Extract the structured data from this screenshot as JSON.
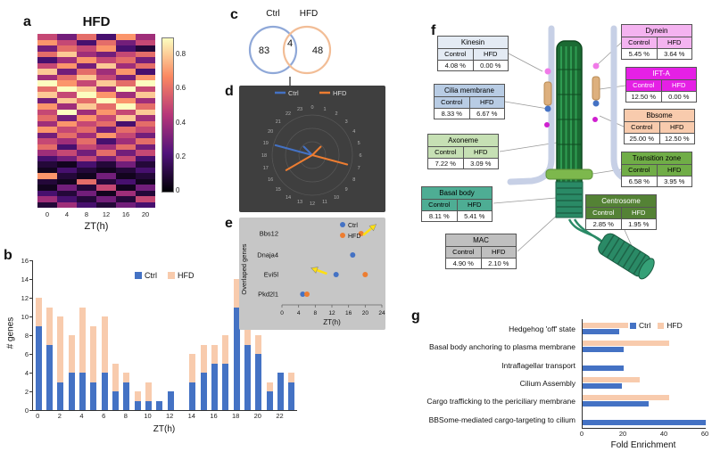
{
  "panels": {
    "a": {
      "label": "a",
      "title": "HFD",
      "xlabel": "ZT(h)"
    },
    "b": {
      "label": "b",
      "ylabel": "# genes",
      "xlabel": "ZT(h)"
    },
    "c": {
      "label": "c"
    },
    "d": {
      "label": "d"
    },
    "e": {
      "label": "e",
      "ylabel": "Overlaped genes",
      "xlabel": "ZT(h)"
    },
    "f": {
      "label": "f",
      "table_headers": [
        "Control",
        "HFD"
      ]
    },
    "g": {
      "label": "g",
      "xlabel": "Fold Enrichment"
    }
  },
  "colors": {
    "ctrl_blue": "#4472c4",
    "hfd_peach": "#f8cbad",
    "hfd_orange": "#ed7d31",
    "arrow_yellow": "#ffe011"
  },
  "cilium_tables": [
    {
      "name": "Kinesin",
      "color": "#e4ebf4",
      "text": "#000",
      "control": "4.08 %",
      "hfd": "0.00 %"
    },
    {
      "name": "Cilia membrane",
      "color": "#b8cce4",
      "text": "#000",
      "control": "8.33 %",
      "hfd": "6.67 %"
    },
    {
      "name": "Axoneme",
      "color": "#c6e0b4",
      "text": "#000",
      "control": "7.22 %",
      "hfd": "3.09 %"
    },
    {
      "name": "Basal body",
      "color": "#4ead94",
      "text": "#000",
      "control": "8.11 %",
      "hfd": "5.41 %"
    },
    {
      "name": "MAC",
      "color": "#bfbfbf",
      "text": "#000",
      "control": "4.90 %",
      "hfd": "2.10 %"
    },
    {
      "name": "Dynein",
      "color": "#f4b3f0",
      "text": "#000",
      "control": "5.45 %",
      "hfd": "3.64 %"
    },
    {
      "name": "IFT-A",
      "color": "#e520e5",
      "text": "#fff",
      "control": "12.50 %",
      "hfd": "0.00 %"
    },
    {
      "name": "Bbsome",
      "color": "#f8cbad",
      "text": "#000",
      "control": "25.00 %",
      "hfd": "12.50 %"
    },
    {
      "name": "Transition zone",
      "color": "#70ad47",
      "text": "#000",
      "control": "6.58 %",
      "hfd": "3.95 %"
    },
    {
      "name": "Centrosome",
      "color": "#548235",
      "text": "#fff",
      "control": "2.85 %",
      "hfd": "1.95 %"
    }
  ],
  "chart_data": [
    {
      "id": "hfd_heatmap",
      "type": "heatmap",
      "title": "HFD",
      "xlabel": "ZT(h)",
      "x_ticks": [
        0,
        4,
        8,
        12,
        16,
        20
      ],
      "colorbar_range": [
        0,
        0.9
      ],
      "colorbar_ticks": [
        0.8,
        0.6,
        0.4,
        0.2,
        0
      ],
      "values": [
        [
          0.5,
          0.3,
          0.6,
          0.2,
          0.7,
          0.4
        ],
        [
          0.7,
          0.5,
          0.2,
          0.6,
          0.3,
          0.5
        ],
        [
          0.3,
          0.6,
          0.5,
          0.7,
          0.2,
          0.1
        ],
        [
          0.6,
          0.8,
          0.4,
          0.3,
          0.5,
          0.6
        ],
        [
          0.2,
          0.4,
          0.7,
          0.5,
          0.6,
          0.3
        ],
        [
          0.5,
          0.7,
          0.3,
          0.8,
          0.4,
          0.6
        ],
        [
          0.8,
          0.3,
          0.6,
          0.4,
          0.7,
          0.2
        ],
        [
          0.4,
          0.6,
          0.8,
          0.5,
          0.3,
          0.7
        ],
        [
          0.9,
          0.7,
          0.5,
          0.8,
          0.6,
          0.9
        ],
        [
          0.6,
          0.9,
          0.8,
          0.4,
          0.9,
          0.5
        ],
        [
          0.8,
          0.5,
          0.9,
          0.7,
          0.4,
          0.8
        ],
        [
          0.3,
          0.8,
          0.6,
          0.9,
          0.7,
          0.4
        ],
        [
          0.7,
          0.4,
          0.8,
          0.6,
          0.9,
          0.6
        ],
        [
          0.5,
          0.9,
          0.4,
          0.7,
          0.5,
          0.8
        ],
        [
          0.6,
          0.3,
          0.7,
          0.5,
          0.8,
          0.4
        ],
        [
          0.4,
          0.7,
          0.5,
          0.6,
          0.2,
          0.6
        ],
        [
          0.7,
          0.5,
          0.6,
          0.3,
          0.6,
          0.5
        ],
        [
          0.3,
          0.6,
          0.4,
          0.7,
          0.5,
          0.3
        ],
        [
          0.5,
          0.4,
          0.6,
          0.2,
          0.4,
          0.6
        ],
        [
          0.6,
          0.2,
          0.5,
          0.4,
          0.6,
          0.3
        ],
        [
          0.4,
          0.5,
          0.3,
          0.6,
          0.3,
          0.5
        ],
        [
          0.2,
          0.3,
          0.5,
          0.3,
          0.5,
          0.2
        ],
        [
          0.1,
          0.05,
          0.2,
          0.1,
          0.3,
          0.1
        ],
        [
          0.05,
          0.2,
          0.1,
          0.05,
          0.1,
          0.2
        ],
        [
          0.7,
          0.1,
          0.05,
          0.3,
          0.05,
          0.1
        ],
        [
          0.1,
          0.05,
          0.6,
          0.1,
          0.2,
          0.05
        ],
        [
          0.05,
          0.3,
          0.1,
          0.5,
          0.05,
          0.3
        ],
        [
          0.2,
          0.1,
          0.3,
          0.05,
          0.4,
          0.1
        ],
        [
          0.4,
          0.2,
          0.1,
          0.3,
          0.1,
          0.5
        ],
        [
          0.1,
          0.4,
          0.2,
          0.1,
          0.3,
          0.2
        ]
      ]
    },
    {
      "id": "genes_per_zt",
      "type": "bar",
      "xlabel": "ZT(h)",
      "ylabel": "# genes",
      "ylim": [
        0,
        16
      ],
      "x": [
        0,
        1,
        2,
        3,
        4,
        5,
        6,
        7,
        8,
        9,
        10,
        11,
        12,
        13,
        14,
        15,
        16,
        17,
        18,
        19,
        20,
        21,
        22,
        23
      ],
      "series": [
        {
          "name": "Ctrl",
          "values": [
            9,
            7,
            3,
            4,
            4,
            3,
            4,
            2,
            3,
            1,
            1,
            1,
            2,
            0,
            3,
            4,
            5,
            5,
            11,
            7,
            6,
            2,
            4,
            3
          ]
        },
        {
          "name": "HFD",
          "values": [
            12,
            11,
            10,
            8,
            11,
            9,
            10,
            5,
            4,
            2,
            3,
            1,
            2,
            0,
            6,
            7,
            7,
            8,
            14,
            10,
            8,
            3,
            4,
            4
          ]
        }
      ]
    },
    {
      "id": "overlap_venn",
      "type": "venn",
      "labels": [
        "Ctrl",
        "HFD"
      ],
      "values": {
        "ctrl_only": 83,
        "overlap": 4,
        "hfd_only": 48
      }
    },
    {
      "id": "phase_clock",
      "type": "radar",
      "hours": 24,
      "series": [
        {
          "name": "Ctrl",
          "points": [
            {
              "h": 19,
              "r": 0.95
            },
            {
              "h": 21,
              "r": 0.3
            }
          ]
        },
        {
          "name": "HFD",
          "points": [
            {
              "h": 7,
              "r": 0.9
            },
            {
              "h": 16,
              "r": 0.75
            },
            {
              "h": 3,
              "r": 0.3
            }
          ]
        }
      ]
    },
    {
      "id": "overlapped_genes_phase",
      "type": "scatter",
      "ylabel": "Overlaped genes",
      "xlabel": "ZT(h)",
      "xlim": [
        0,
        24
      ],
      "x_ticks": [
        0,
        4,
        8,
        12,
        16,
        20,
        24
      ],
      "categories": [
        "Bbs12",
        "Dnaja4",
        "Evi5l",
        "Pkd2l1"
      ],
      "series": [
        {
          "name": "Ctrl",
          "points": [
            {
              "gene": "Dnaja4",
              "zt": 17
            },
            {
              "gene": "Evi5l",
              "zt": 13
            },
            {
              "gene": "Pkd2l1",
              "zt": 5
            }
          ]
        },
        {
          "name": "HFD",
          "points": [
            {
              "gene": "Bbs12",
              "zt": 19
            },
            {
              "gene": "Evi5l",
              "zt": 20
            },
            {
              "gene": "Pkd2l1",
              "zt": 6
            }
          ]
        }
      ],
      "arrows": [
        {
          "gene": "Bbs12",
          "zt": 21,
          "angle": -40
        },
        {
          "gene": "Evi5l",
          "zt": 9,
          "angle": 200
        }
      ]
    },
    {
      "id": "fold_enrichment",
      "type": "bar",
      "orientation": "horizontal",
      "xlabel": "Fold Enrichment",
      "xlim": [
        0,
        60
      ],
      "x_ticks": [
        0,
        20,
        40,
        60
      ],
      "categories": [
        "Hedgehog 'off' state",
        "Basal body anchoring to plasma membrane",
        "Intraflagellar transport",
        "Cilium Assembly",
        "Cargo trafficking to the periciliary membrane",
        "BBSome-mediated cargo-targeting to cilium"
      ],
      "series": [
        {
          "name": "Ctrl",
          "values": [
            18,
            20,
            20,
            19,
            32,
            60
          ]
        },
        {
          "name": "HFD",
          "values": [
            22,
            42,
            0,
            28,
            42,
            0
          ]
        }
      ]
    }
  ]
}
